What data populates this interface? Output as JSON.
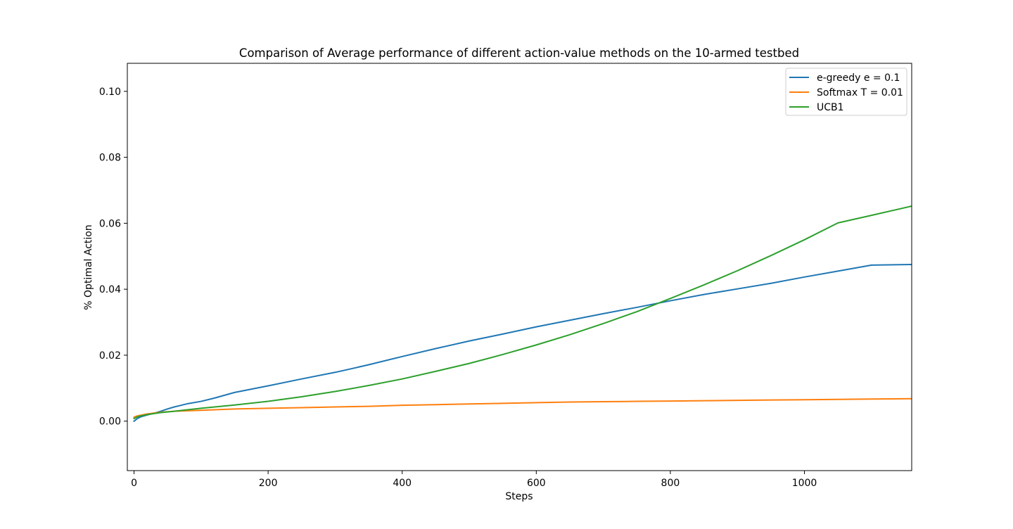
{
  "chart_data": {
    "type": "line",
    "title": "Comparison of Average performance of different action-value methods on the 10-armed testbed",
    "xlabel": "Steps",
    "ylabel": "% Optimal Action",
    "xlim": [
      -10,
      1160
    ],
    "ylim": [
      -0.015,
      0.1085
    ],
    "xticks": [
      {
        "value": 0,
        "label": "0"
      },
      {
        "value": 200,
        "label": "200"
      },
      {
        "value": 400,
        "label": "400"
      },
      {
        "value": 600,
        "label": "600"
      },
      {
        "value": 800,
        "label": "800"
      },
      {
        "value": 1000,
        "label": "1000"
      }
    ],
    "yticks": [
      {
        "value": 0.0,
        "label": "0.00"
      },
      {
        "value": 0.02,
        "label": "0.02"
      },
      {
        "value": 0.04,
        "label": "0.04"
      },
      {
        "value": 0.06,
        "label": "0.06"
      },
      {
        "value": 0.08,
        "label": "0.08"
      },
      {
        "value": 0.1,
        "label": "0.10"
      }
    ],
    "grid": false,
    "legend_position": "top-right",
    "series": [
      {
        "name": "e-greedy e = 0.1",
        "color": "#1f77b4",
        "x": [
          0,
          5,
          10,
          20,
          30,
          40,
          50,
          60,
          70,
          80,
          100,
          120,
          150,
          200,
          250,
          300,
          320,
          350,
          400,
          450,
          500,
          550,
          600,
          650,
          700,
          750,
          800,
          850,
          900,
          950,
          1000,
          1050,
          1100,
          1160
        ],
        "y": [
          0.0,
          0.0008,
          0.0013,
          0.0019,
          0.0024,
          0.003,
          0.0037,
          0.0043,
          0.0048,
          0.0053,
          0.006,
          0.007,
          0.0087,
          0.0107,
          0.0128,
          0.0148,
          0.0157,
          0.0171,
          0.0196,
          0.022,
          0.0243,
          0.0264,
          0.0286,
          0.0306,
          0.0326,
          0.0345,
          0.0365,
          0.0384,
          0.0401,
          0.0418,
          0.0437,
          0.0455,
          0.0473,
          0.0475
        ]
      },
      {
        "name": "Softmax T = 0.01",
        "color": "#ff7f0e",
        "x": [
          0,
          5,
          10,
          20,
          40,
          60,
          100,
          150,
          200,
          250,
          300,
          350,
          400,
          450,
          500,
          550,
          600,
          650,
          700,
          750,
          800,
          850,
          900,
          950,
          1000,
          1050,
          1100,
          1160
        ],
        "y": [
          0.0012,
          0.0016,
          0.0018,
          0.0022,
          0.0027,
          0.003,
          0.0033,
          0.0037,
          0.0039,
          0.0041,
          0.0043,
          0.0045,
          0.0048,
          0.005,
          0.0052,
          0.0054,
          0.0056,
          0.0058,
          0.0059,
          0.006,
          0.0061,
          0.0062,
          0.0063,
          0.0064,
          0.0065,
          0.0066,
          0.0067,
          0.0068
        ]
      },
      {
        "name": "UCB1",
        "color": "#2ca02c",
        "x": [
          0,
          5,
          10,
          20,
          40,
          60,
          100,
          150,
          200,
          250,
          300,
          350,
          400,
          450,
          500,
          550,
          600,
          650,
          700,
          750,
          800,
          850,
          900,
          950,
          1000,
          1050,
          1100,
          1160
        ],
        "y": [
          0.0008,
          0.0013,
          0.0016,
          0.002,
          0.0026,
          0.003,
          0.0039,
          0.0049,
          0.006,
          0.0074,
          0.009,
          0.0108,
          0.0128,
          0.0151,
          0.0175,
          0.0202,
          0.0231,
          0.0262,
          0.0296,
          0.0332,
          0.0372,
          0.0413,
          0.0456,
          0.0502,
          0.055,
          0.0601,
          0.0624,
          0.0652
        ]
      }
    ]
  }
}
